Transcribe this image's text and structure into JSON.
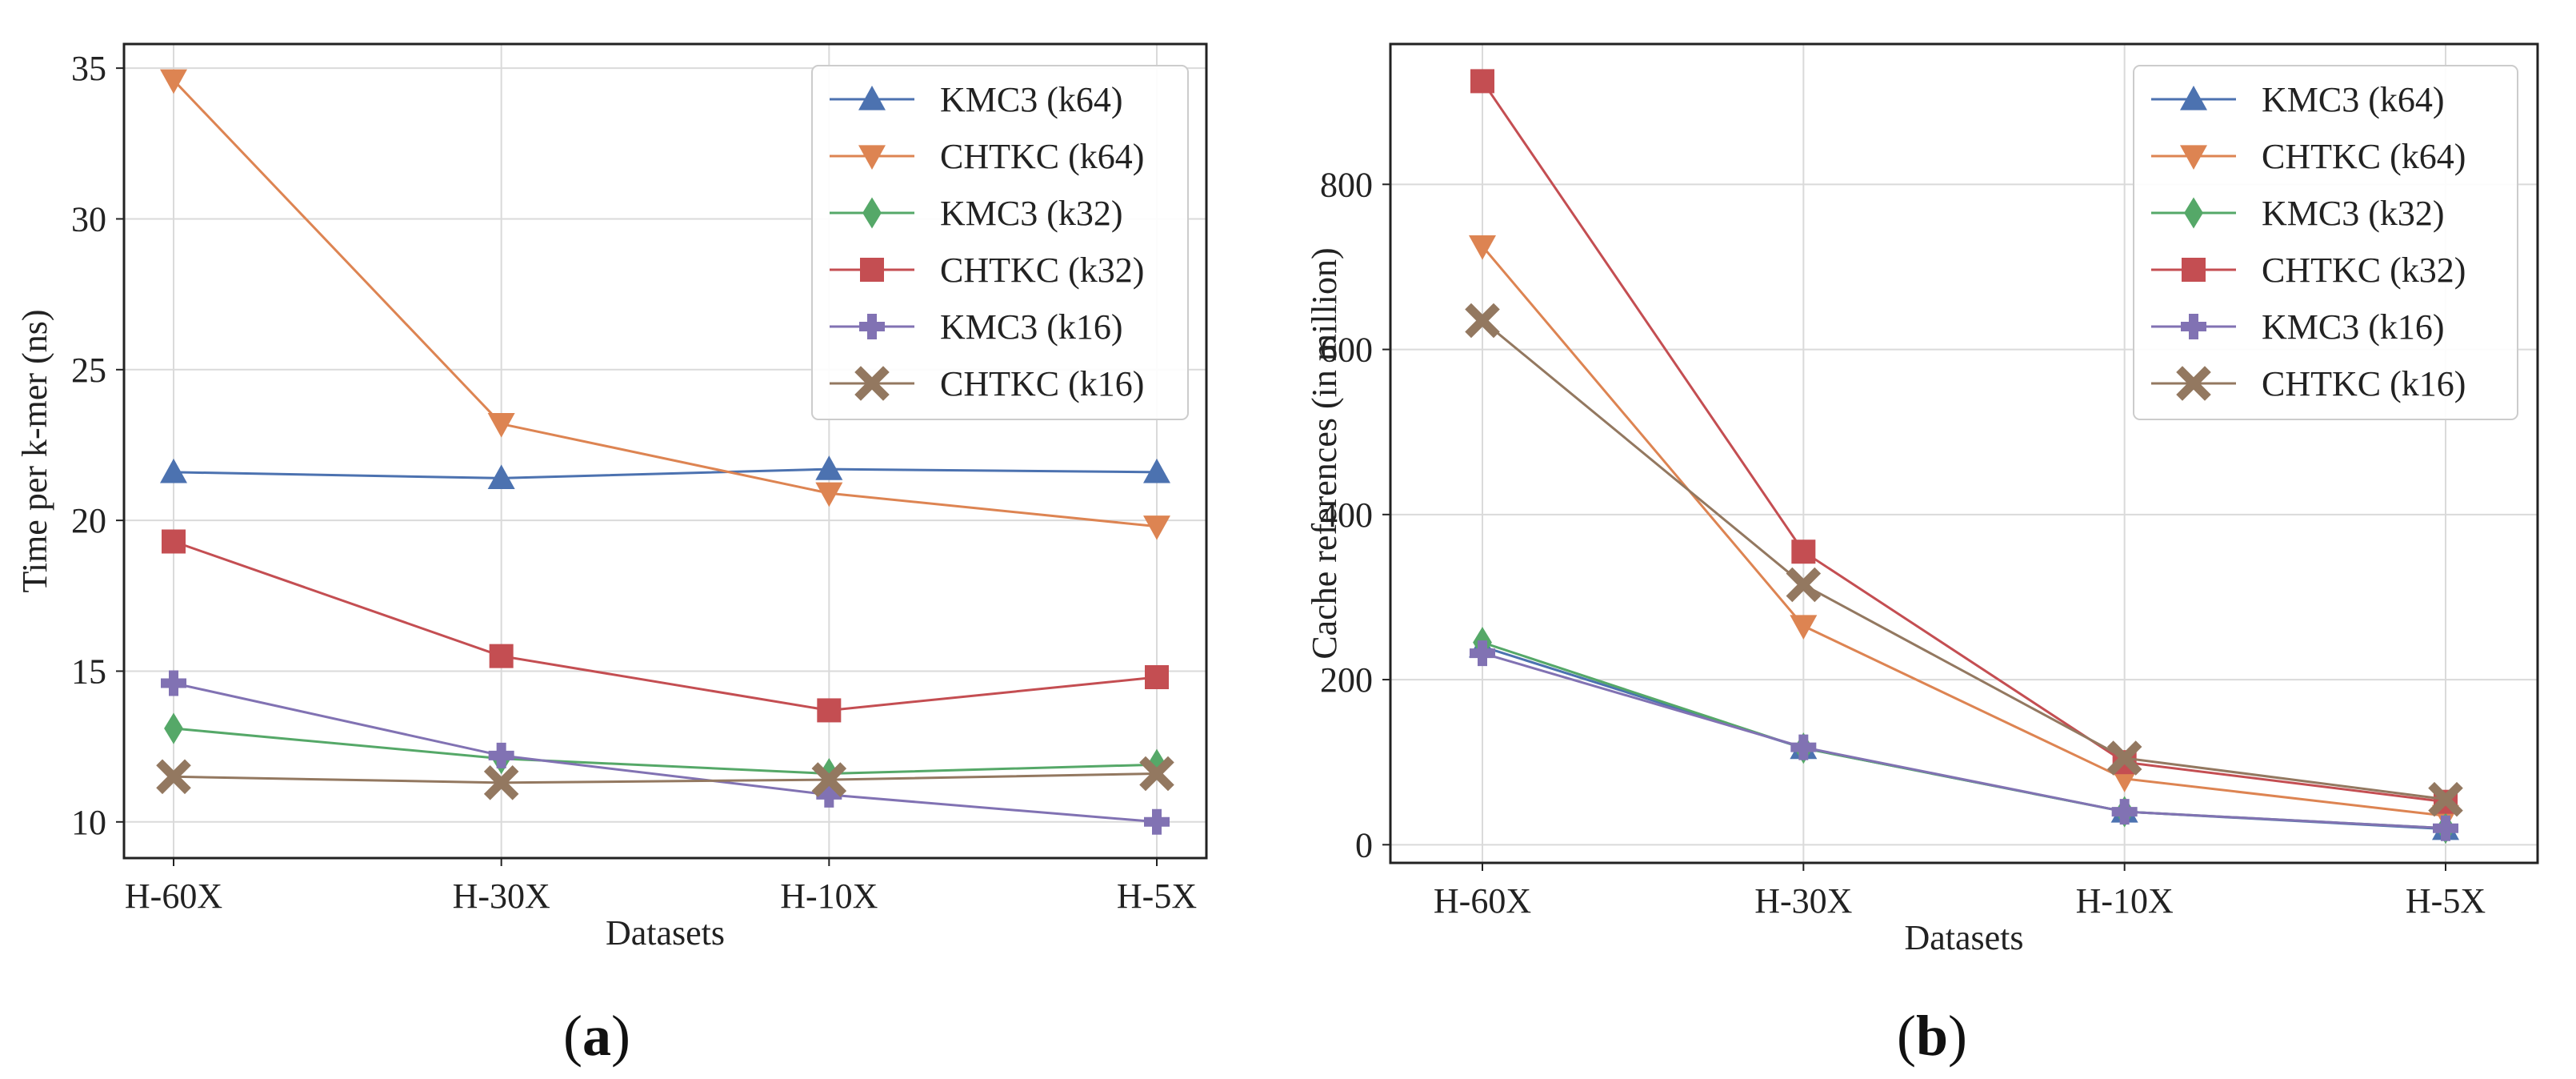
{
  "chart_data": [
    {
      "type": "line",
      "panel": "a",
      "panel_label": {
        "open": "(",
        "letter": "a",
        "close": ")"
      },
      "xlabel": "Datasets",
      "ylabel": "Time per k-mer (ns)",
      "categories": [
        "H-60X",
        "H-30X",
        "H-10X",
        "H-5X"
      ],
      "ylim": [
        8.8,
        35.8
      ],
      "yticks": [
        10,
        15,
        20,
        25,
        30,
        35
      ],
      "grid": true,
      "legend_position": "top-right",
      "series": [
        {
          "name": "KMC3 (k64)",
          "color": "#4c72b0",
          "marker": "triangle-up",
          "values": [
            21.6,
            21.4,
            21.7,
            21.6
          ]
        },
        {
          "name": "CHTKC (k64)",
          "color": "#dd8452",
          "marker": "triangle-down",
          "values": [
            34.6,
            23.2,
            20.9,
            19.8
          ]
        },
        {
          "name": "KMC3 (k32)",
          "color": "#55a868",
          "marker": "diamond",
          "values": [
            13.1,
            12.1,
            11.6,
            11.9
          ]
        },
        {
          "name": "CHTKC (k32)",
          "color": "#c44e52",
          "marker": "square",
          "values": [
            19.3,
            15.5,
            13.7,
            14.8
          ]
        },
        {
          "name": "KMC3 (k16)",
          "color": "#8172b3",
          "marker": "plus",
          "values": [
            14.6,
            12.2,
            10.9,
            10.0
          ]
        },
        {
          "name": "CHTKC (k16)",
          "color": "#937860",
          "marker": "x",
          "values": [
            11.5,
            11.3,
            11.4,
            11.6
          ]
        }
      ]
    },
    {
      "type": "line",
      "panel": "b",
      "panel_label": {
        "open": "(",
        "letter": "b",
        "close": ")"
      },
      "xlabel": "Datasets",
      "ylabel": "Cache references (in million)",
      "categories": [
        "H-60X",
        "H-30X",
        "H-10X",
        "H-5X"
      ],
      "ylim": [
        -22,
        970
      ],
      "yticks": [
        0,
        200,
        400,
        600,
        800
      ],
      "grid": true,
      "legend_position": "top-right",
      "series": [
        {
          "name": "KMC3 (k64)",
          "color": "#4c72b0",
          "marker": "triangle-up",
          "values": [
            240,
            117,
            40,
            19
          ]
        },
        {
          "name": "CHTKC (k64)",
          "color": "#dd8452",
          "marker": "triangle-down",
          "values": [
            725,
            265,
            80,
            35
          ]
        },
        {
          "name": "KMC3 (k32)",
          "color": "#55a868",
          "marker": "diamond",
          "values": [
            245,
            117,
            40,
            20
          ]
        },
        {
          "name": "CHTKC (k32)",
          "color": "#c44e52",
          "marker": "square",
          "values": [
            925,
            355,
            100,
            52
          ]
        },
        {
          "name": "KMC3 (k16)",
          "color": "#8172b3",
          "marker": "plus",
          "values": [
            232,
            118,
            40,
            20
          ]
        },
        {
          "name": "CHTKC (k16)",
          "color": "#937860",
          "marker": "x",
          "values": [
            635,
            315,
            105,
            55
          ]
        }
      ]
    }
  ]
}
